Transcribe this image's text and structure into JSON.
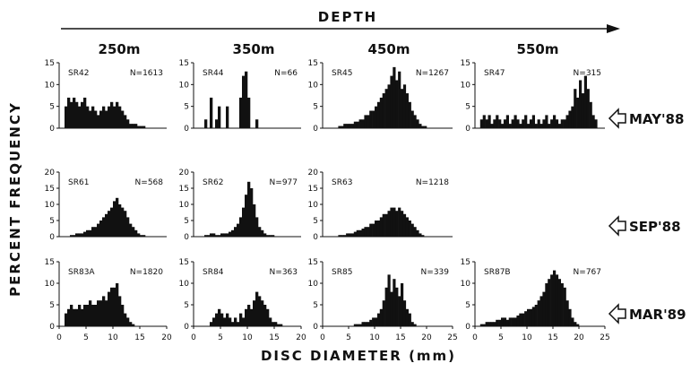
{
  "figure": {
    "top_label": "DEPTH",
    "y_axis_label": "PERCENT FREQUENCY",
    "x_axis_label": "DISC DIAMETER (mm)",
    "columns": [
      "250m",
      "350m",
      "450m",
      "550m"
    ],
    "rows": [
      "MAY'88",
      "SEP'88",
      "MAR'89"
    ]
  },
  "chart_data": [
    {
      "type": "bar",
      "station": "SR42",
      "n_label": "N=1613",
      "row": 0,
      "col": 0,
      "xlim": [
        0,
        20
      ],
      "ylim": [
        0,
        15
      ],
      "bin_start": 1,
      "bin_width": 0.5,
      "values": [
        5,
        7,
        6,
        7,
        6,
        5,
        6,
        7,
        5,
        4,
        5,
        4,
        3,
        4,
        5,
        4,
        5,
        6,
        5,
        6,
        5,
        4,
        3,
        2,
        1,
        1,
        1,
        0.5,
        0.5,
        0.5
      ]
    },
    {
      "type": "bar",
      "station": "SR44",
      "n_label": "N=66",
      "row": 0,
      "col": 1,
      "xlim": [
        0,
        20
      ],
      "ylim": [
        0,
        15
      ],
      "bin_start": 2,
      "bin_width": 0.5,
      "values": [
        2,
        0,
        7,
        0,
        2,
        5,
        0,
        0,
        5,
        0,
        0,
        0,
        0,
        7,
        12,
        13,
        7,
        0,
        0,
        2,
        0,
        0,
        0,
        0,
        0,
        0,
        0
      ]
    },
    {
      "type": "bar",
      "station": "SR45",
      "n_label": "N=1267",
      "row": 0,
      "col": 2,
      "xlim": [
        0,
        25
      ],
      "ylim": [
        0,
        15
      ],
      "bin_start": 3,
      "bin_width": 0.5,
      "values": [
        0.5,
        0.5,
        1,
        1,
        1,
        1,
        1.5,
        1.5,
        2,
        2,
        3,
        3,
        4,
        4,
        5,
        6,
        7,
        8,
        9,
        10,
        12,
        14,
        11,
        13,
        9,
        10,
        8,
        6,
        4,
        3,
        2,
        1,
        0.5,
        0.5
      ]
    },
    {
      "type": "bar",
      "station": "SR47",
      "n_label": "N=315",
      "row": 0,
      "col": 3,
      "xlim": [
        0,
        25
      ],
      "ylim": [
        0,
        15
      ],
      "bin_start": 1,
      "bin_width": 0.5,
      "values": [
        2,
        3,
        2,
        3,
        1,
        2,
        3,
        2,
        1,
        2,
        3,
        1,
        2,
        3,
        2,
        1,
        2,
        3,
        1,
        2,
        3,
        1,
        2,
        1,
        2,
        3,
        1,
        2,
        3,
        2,
        1,
        2,
        2,
        3,
        4,
        5,
        9,
        7,
        11,
        8,
        12,
        9,
        6,
        3,
        2
      ]
    },
    {
      "type": "bar",
      "station": "SR61",
      "n_label": "N=568",
      "row": 1,
      "col": 0,
      "xlim": [
        0,
        20
      ],
      "ylim": [
        0,
        20
      ],
      "bin_start": 2,
      "bin_width": 0.5,
      "values": [
        0.5,
        0.5,
        1,
        1,
        1,
        1.5,
        2,
        2,
        3,
        3,
        4,
        5,
        6,
        7,
        8,
        9,
        11,
        12,
        10,
        9,
        8,
        6,
        4,
        3,
        2,
        1,
        0.5,
        0.5
      ]
    },
    {
      "type": "bar",
      "station": "SR62",
      "n_label": "N=977",
      "row": 1,
      "col": 1,
      "xlim": [
        0,
        20
      ],
      "ylim": [
        0,
        20
      ],
      "bin_start": 2,
      "bin_width": 0.5,
      "values": [
        0.5,
        0.5,
        1,
        1,
        0.5,
        0.5,
        1,
        1,
        1,
        1.5,
        2,
        3,
        4,
        6,
        9,
        13,
        17,
        15,
        10,
        6,
        3,
        2,
        1,
        0.5,
        0.5,
        0.5
      ]
    },
    {
      "type": "bar",
      "station": "SR63",
      "n_label": "N=1218",
      "row": 1,
      "col": 2,
      "xlim": [
        0,
        25
      ],
      "ylim": [
        0,
        20
      ],
      "bin_start": 3,
      "bin_width": 0.5,
      "values": [
        0.5,
        0.5,
        0.5,
        1,
        1,
        1,
        1.5,
        2,
        2,
        2.5,
        3,
        3,
        4,
        4,
        5,
        5,
        6,
        7,
        7,
        8,
        9,
        9,
        8,
        9,
        8,
        7,
        6,
        5,
        4,
        3,
        2,
        1,
        0.5
      ]
    },
    {
      "type": "bar",
      "station": "SR83A",
      "n_label": "N=1820",
      "row": 2,
      "col": 0,
      "xlim": [
        0,
        20
      ],
      "ylim": [
        0,
        15
      ],
      "bin_start": 1,
      "bin_width": 0.5,
      "values": [
        3,
        4,
        5,
        4,
        4,
        5,
        4,
        5,
        5,
        6,
        5,
        5,
        6,
        6,
        7,
        6,
        8,
        9,
        9,
        10,
        7,
        5,
        3,
        2,
        1,
        0.5
      ]
    },
    {
      "type": "bar",
      "station": "SR84",
      "n_label": "N=363",
      "row": 2,
      "col": 1,
      "xlim": [
        0,
        20
      ],
      "ylim": [
        0,
        15
      ],
      "bin_start": 3,
      "bin_width": 0.5,
      "values": [
        1,
        2,
        3,
        4,
        3,
        2,
        3,
        2,
        1,
        2,
        1,
        3,
        2,
        4,
        5,
        4,
        6,
        8,
        7,
        6,
        5,
        4,
        2,
        1,
        1,
        0.5,
        0.5
      ]
    },
    {
      "type": "bar",
      "station": "SR85",
      "n_label": "N=339",
      "row": 2,
      "col": 2,
      "xlim": [
        0,
        25
      ],
      "ylim": [
        0,
        15
      ],
      "bin_start": 6,
      "bin_width": 0.5,
      "values": [
        0.5,
        0.5,
        0.5,
        1,
        1,
        1,
        1.5,
        2,
        2,
        3,
        4,
        6,
        9,
        12,
        8,
        11,
        9,
        7,
        10,
        6,
        4,
        3,
        1,
        0.5
      ]
    },
    {
      "type": "bar",
      "station": "SR87B",
      "n_label": "N=767",
      "row": 2,
      "col": 3,
      "xlim": [
        0,
        25
      ],
      "ylim": [
        0,
        15
      ],
      "bin_start": 1,
      "bin_width": 0.5,
      "values": [
        0.5,
        0.5,
        1,
        1,
        1,
        1,
        1.5,
        1.5,
        2,
        2,
        1.5,
        2,
        2,
        2,
        2.5,
        3,
        3,
        3.5,
        4,
        4,
        4.5,
        5,
        6,
        7,
        8,
        10,
        11,
        12,
        13,
        12,
        11,
        10,
        9,
        6,
        4,
        2,
        1,
        0.5
      ]
    }
  ]
}
